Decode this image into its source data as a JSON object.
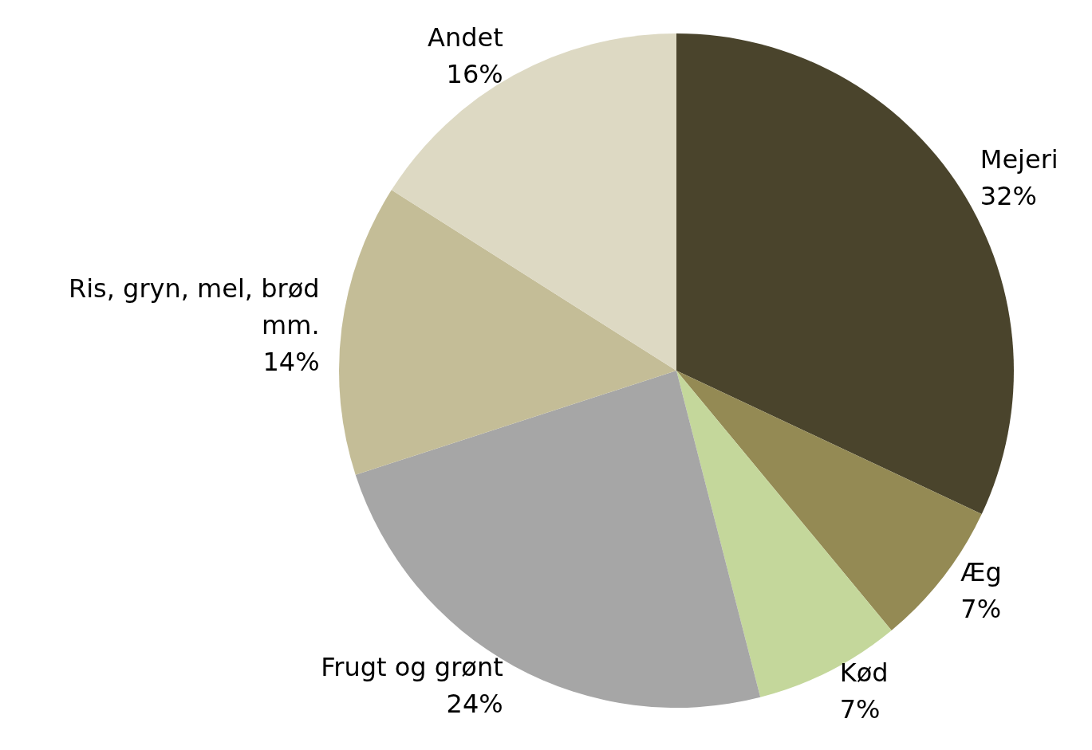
{
  "chart_data": {
    "type": "pie",
    "categories": [
      "Mejeri",
      "Æg",
      "Kød",
      "Frugt og grønt",
      "Ris, gryn, mel, brød mm.",
      "Andet"
    ],
    "values": [
      32,
      7,
      7,
      24,
      14,
      16
    ],
    "value_labels": [
      "32%",
      "7%",
      "7%",
      "24%",
      "14%",
      "16%"
    ],
    "colors": [
      "#4a442c",
      "#948a54",
      "#c4d79b",
      "#a6a6a6",
      "#c4bd97",
      "#ddd9c3"
    ],
    "legend": false
  }
}
